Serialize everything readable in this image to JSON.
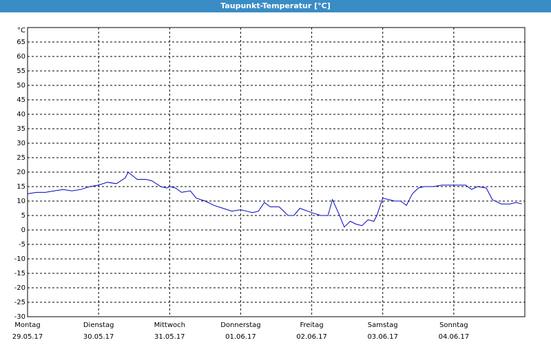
{
  "chart_data": {
    "type": "line",
    "title": "Taupunkt-Temperatur [°C]",
    "y_unit": "°C",
    "xlim": [
      0,
      168
    ],
    "xticks": [
      {
        "value": 0,
        "label": "Montag"
      },
      {
        "value": 24,
        "label": "Dienstag"
      },
      {
        "value": 48,
        "label": "Mittwoch"
      },
      {
        "value": 72,
        "label": "Donnerstag"
      },
      {
        "value": 96,
        "label": "Freitag"
      },
      {
        "value": 120,
        "label": "Samstag"
      },
      {
        "value": 144,
        "label": "Sonntag"
      }
    ],
    "xtick_dates": [
      "29.05.17",
      "30.05.17",
      "31.05.17",
      "01.06.17",
      "02.06.17",
      "03.06.17",
      "04.06.17"
    ],
    "ylim": [
      -30,
      70
    ],
    "yticks": [
      -30,
      -25,
      -20,
      -15,
      -10,
      -5,
      0,
      5,
      10,
      15,
      20,
      25,
      30,
      35,
      40,
      45,
      50,
      55,
      60,
      65
    ],
    "grid": true,
    "series": [
      {
        "color": "#0000c0",
        "x": [
          0,
          3,
          6,
          9,
          12,
          15,
          18,
          21,
          24,
          27,
          30,
          33,
          34,
          37,
          40,
          42,
          45,
          47,
          48,
          50,
          52,
          55,
          57,
          60,
          63,
          66,
          69,
          72,
          74,
          76,
          78,
          80,
          82,
          85,
          88,
          90,
          92,
          96,
          99,
          101.5,
          103,
          105,
          107,
          109,
          111,
          113,
          115,
          117,
          118,
          120,
          122,
          124,
          126,
          128,
          130,
          132,
          134,
          137,
          140,
          143,
          145,
          148,
          150,
          152,
          155,
          157,
          160,
          163,
          165,
          167
        ],
        "values": [
          12.5,
          13,
          13,
          13.5,
          14,
          13.5,
          14,
          15,
          15.5,
          16.5,
          16,
          18,
          20,
          17.5,
          17.5,
          17,
          15,
          14.5,
          15,
          14.5,
          13,
          13.5,
          11,
          10,
          8.5,
          7.5,
          6.5,
          7,
          6.5,
          6,
          6.5,
          9.5,
          8,
          8,
          5,
          5,
          7.5,
          6,
          5,
          5,
          10.5,
          6,
          1,
          3,
          2,
          1.5,
          3.5,
          3,
          5,
          11,
          10.5,
          10,
          10,
          8.5,
          12.5,
          14.5,
          15,
          15,
          15.5,
          15.5,
          15.5,
          15.5,
          14,
          15,
          14.5,
          10.5,
          9,
          9,
          9.5,
          9
        ]
      }
    ]
  }
}
